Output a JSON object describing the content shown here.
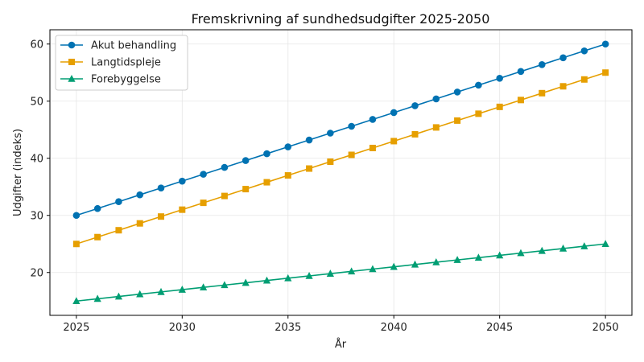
{
  "chart_data": {
    "type": "line",
    "title": "Fremskrivning af sundhedsudgifter 2025-2050",
    "xlabel": "År",
    "ylabel": "Udgifter (indeks)",
    "x": [
      2025,
      2026,
      2027,
      2028,
      2029,
      2030,
      2031,
      2032,
      2033,
      2034,
      2035,
      2036,
      2037,
      2038,
      2039,
      2040,
      2041,
      2042,
      2043,
      2044,
      2045,
      2046,
      2047,
      2048,
      2049,
      2050
    ],
    "xlim": [
      2023.75,
      2051.25
    ],
    "ylim": [
      12.5,
      62.5
    ],
    "xticks": [
      2025,
      2030,
      2035,
      2040,
      2045,
      2050
    ],
    "yticks": [
      20,
      30,
      40,
      50,
      60
    ],
    "grid": true,
    "legend_position": "top-left",
    "series": [
      {
        "name": "Akut behandling",
        "color": "#0072B2",
        "marker": "circle",
        "values": [
          30.0,
          31.2,
          32.4,
          33.6,
          34.8,
          36.0,
          37.2,
          38.4,
          39.6,
          40.8,
          42.0,
          43.2,
          44.4,
          45.6,
          46.8,
          48.0,
          49.2,
          50.4,
          51.6,
          52.8,
          54.0,
          55.2,
          56.4,
          57.6,
          58.8,
          60.0
        ]
      },
      {
        "name": "Langtidspleje",
        "color": "#E69F00",
        "marker": "square",
        "values": [
          25.0,
          26.2,
          27.4,
          28.6,
          29.8,
          31.0,
          32.2,
          33.4,
          34.6,
          35.8,
          37.0,
          38.2,
          39.4,
          40.6,
          41.8,
          43.0,
          44.2,
          45.4,
          46.6,
          47.8,
          49.0,
          50.2,
          51.4,
          52.6,
          53.8,
          55.0
        ]
      },
      {
        "name": "Forebyggelse",
        "color": "#009E73",
        "marker": "triangle",
        "values": [
          15.0,
          15.4,
          15.8,
          16.2,
          16.6,
          17.0,
          17.4,
          17.8,
          18.2,
          18.6,
          19.0,
          19.4,
          19.8,
          20.2,
          20.6,
          21.0,
          21.4,
          21.8,
          22.2,
          22.6,
          23.0,
          23.4,
          23.8,
          24.2,
          24.6,
          25.0
        ]
      }
    ]
  }
}
